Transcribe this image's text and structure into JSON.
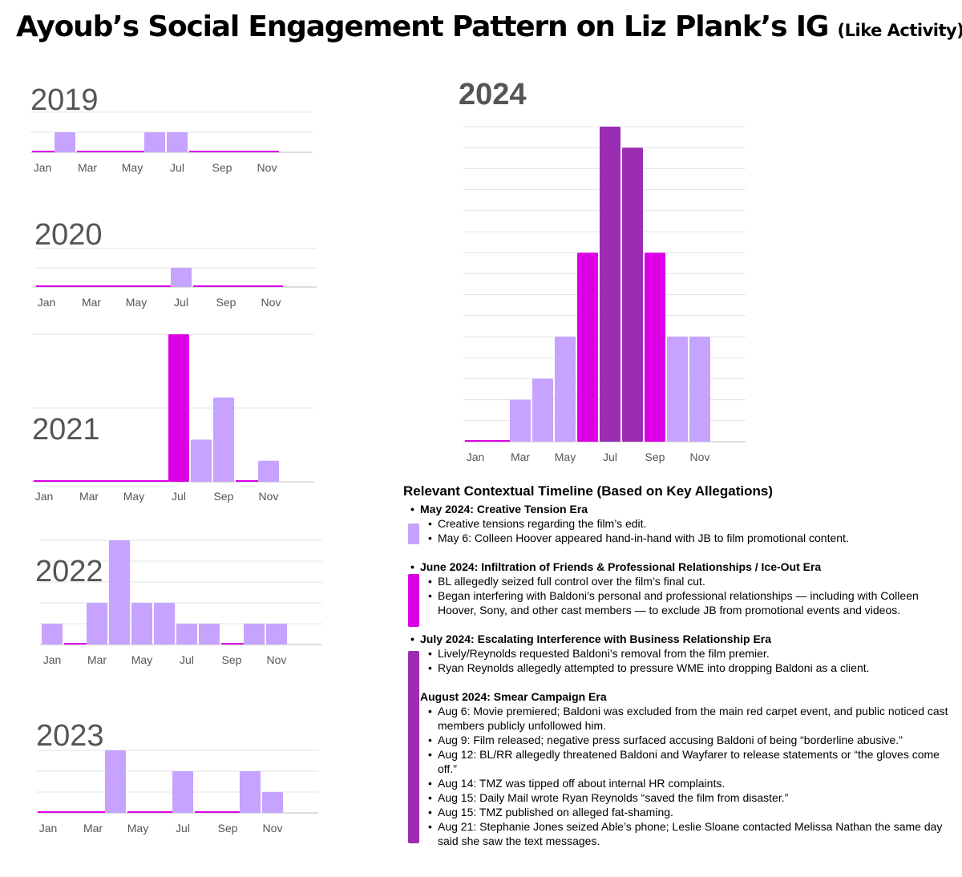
{
  "title": {
    "main": "Ayoub’s Social Engagement Pattern on Liz Plank’s IG",
    "sub": "(Like Activity)"
  },
  "colors": {
    "light": "#c5a3ff",
    "magenta": "#dc00e6",
    "purple": "#9b2db3",
    "grid": "#e3e3e3",
    "baseline": "#c9c9c9"
  },
  "chart_data": [
    {
      "type": "bar",
      "title": "2019",
      "categories": [
        "Jan",
        "Feb",
        "Mar",
        "Apr",
        "May",
        "Jun",
        "Jul",
        "Aug",
        "Sep",
        "Oct",
        "Nov",
        "Dec"
      ],
      "tick_labels": [
        "Jan",
        "Mar",
        "May",
        "Jul",
        "Sep",
        "Nov"
      ],
      "values": [
        0,
        1,
        0,
        0,
        0,
        1,
        1,
        0,
        0,
        0,
        0,
        null
      ],
      "bar_colors": [
        "magenta",
        "light",
        "magenta",
        "magenta",
        "magenta",
        "light",
        "light",
        "magenta",
        "magenta",
        "magenta",
        "magenta",
        null
      ],
      "ylim": [
        0,
        2
      ],
      "grid": true
    },
    {
      "type": "bar",
      "title": "2020",
      "categories": [
        "Jan",
        "Feb",
        "Mar",
        "Apr",
        "May",
        "Jun",
        "Jul",
        "Aug",
        "Sep",
        "Oct",
        "Nov",
        "Dec"
      ],
      "tick_labels": [
        "Jan",
        "Mar",
        "May",
        "Jul",
        "Sep",
        "Nov"
      ],
      "values": [
        0,
        0,
        0,
        0,
        0,
        0,
        1,
        0,
        0,
        0,
        0,
        null
      ],
      "bar_colors": [
        "magenta",
        "magenta",
        "magenta",
        "magenta",
        "magenta",
        "magenta",
        "light",
        "magenta",
        "magenta",
        "magenta",
        "magenta",
        null
      ],
      "ylim": [
        0,
        2
      ],
      "grid": true
    },
    {
      "type": "bar",
      "title": "2021",
      "categories": [
        "Jan",
        "Feb",
        "Mar",
        "Apr",
        "May",
        "Jun",
        "Jul",
        "Aug",
        "Sep",
        "Oct",
        "Nov",
        "Dec"
      ],
      "tick_labels": [
        "Jan",
        "Mar",
        "May",
        "Jul",
        "Sep",
        "Nov"
      ],
      "values": [
        0,
        0,
        0,
        0,
        0,
        0,
        7,
        2,
        4,
        0,
        1,
        null
      ],
      "bar_colors": [
        "magenta",
        "magenta",
        "magenta",
        "magenta",
        "magenta",
        "magenta",
        "magenta",
        "light",
        "light",
        "magenta",
        "light",
        null
      ],
      "ylim": [
        0,
        7
      ],
      "grid": true
    },
    {
      "type": "bar",
      "title": "2022",
      "categories": [
        "Jan",
        "Feb",
        "Mar",
        "Apr",
        "May",
        "Jun",
        "Jul",
        "Aug",
        "Sep",
        "Oct",
        "Nov",
        "Dec"
      ],
      "tick_labels": [
        "Jan",
        "Mar",
        "May",
        "Jul",
        "Sep",
        "Nov"
      ],
      "values": [
        1,
        0,
        2,
        5,
        2,
        2,
        1,
        1,
        0,
        1,
        1,
        null
      ],
      "bar_colors": [
        "light",
        "magenta",
        "light",
        "light",
        "light",
        "light",
        "light",
        "light",
        "magenta",
        "light",
        "light",
        null
      ],
      "ylim": [
        0,
        5
      ],
      "grid": true
    },
    {
      "type": "bar",
      "title": "2023",
      "categories": [
        "Jan",
        "Feb",
        "Mar",
        "Apr",
        "May",
        "Jun",
        "Jul",
        "Aug",
        "Sep",
        "Oct",
        "Nov",
        "Dec"
      ],
      "tick_labels": [
        "Jan",
        "Mar",
        "May",
        "Jul",
        "Sep",
        "Nov"
      ],
      "values": [
        0,
        0,
        0,
        3,
        0,
        0,
        2,
        0,
        0,
        2,
        1,
        null
      ],
      "bar_colors": [
        "magenta",
        "magenta",
        "magenta",
        "light",
        "magenta",
        "magenta",
        "light",
        "magenta",
        "magenta",
        "light",
        "light",
        null
      ],
      "ylim": [
        0,
        3
      ],
      "grid": true
    },
    {
      "type": "bar",
      "title": "2024",
      "categories": [
        "Jan",
        "Feb",
        "Mar",
        "Apr",
        "May",
        "Jun",
        "Jul",
        "Aug",
        "Sep",
        "Oct",
        "Nov",
        "Dec"
      ],
      "tick_labels": [
        "Jan",
        "Mar",
        "May",
        "Jul",
        "Sep",
        "Nov"
      ],
      "values": [
        0,
        0,
        2,
        3,
        5,
        9,
        15,
        14,
        9,
        5,
        5,
        null
      ],
      "bar_colors": [
        "magenta",
        "magenta",
        "light",
        "light",
        "light",
        "magenta",
        "purple",
        "purple",
        "magenta",
        "light",
        "light",
        null
      ],
      "ylim": [
        0,
        15
      ],
      "grid": true
    }
  ],
  "timeline": {
    "heading": "Relevant Contextual Timeline (Based on Key Allegations)",
    "eras": [
      {
        "title": "May 2024: Creative Tension Era",
        "color": "light",
        "bullet": true,
        "items": [
          "Creative tensions regarding the film’s edit.",
          "May 6: Colleen Hoover appeared hand-in-hand with JB to film promotional content."
        ]
      },
      {
        "title": "June 2024: Infiltration of Friends & Professional Relationships / Ice-Out Era",
        "color": "magenta",
        "bullet": true,
        "items": [
          "BL allegedly seized full control over the film’s final cut.",
          "Began interfering with Baldoni’s personal and professional relationships — including with Colleen Hoover, Sony, and other cast members — to exclude JB from promotional events and videos."
        ]
      },
      {
        "title": "July 2024: Escalating Interference with Business Relationship Era",
        "color": "purple",
        "bullet": true,
        "items": [
          "Lively/Reynolds requested Baldoni’s removal from the film premier.",
          "Ryan Reynolds allegedly attempted to pressure WME into dropping Baldoni as a client."
        ]
      },
      {
        "title": "August 2024: Smear Campaign Era",
        "color": "purple",
        "bullet": false,
        "items": [
          "Aug 6: Movie premiered; Baldoni was excluded from the main red carpet event, and public noticed cast members publicly unfollowed him.",
          "Aug 9: Film released; negative press surfaced accusing Baldoni of being “borderline abusive.”",
          "Aug 12: BL/RR allegedly threatened Baldoni and Wayfarer to release statements or “the gloves come off.”",
          "Aug 14: TMZ was tipped off about internal HR complaints.",
          "Aug 15: Daily Mail wrote Ryan Reynolds “saved the film from disaster.”",
          "Aug 15: TMZ published on alleged fat-shaming.",
          "Aug 21: Stephanie Jones seized Able’s phone; Leslie Sloane contacted Melissa Nathan the same day said she saw the text messages."
        ]
      }
    ]
  }
}
